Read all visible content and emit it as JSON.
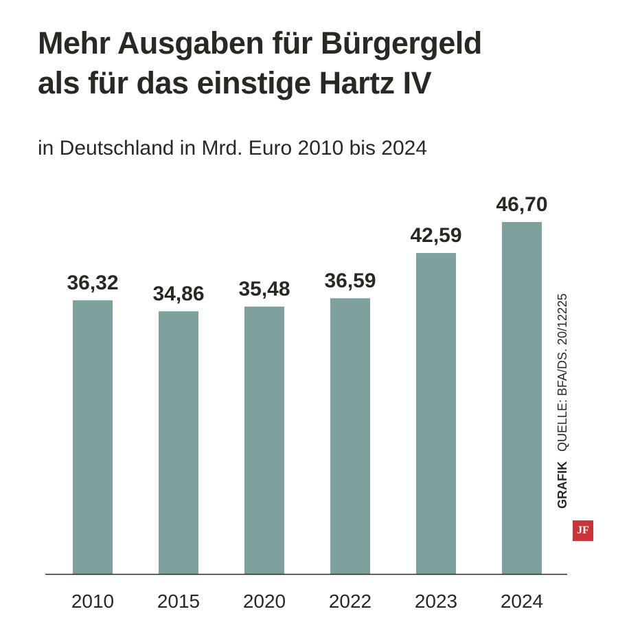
{
  "header": {
    "title_line1": "Mehr Ausgaben für Bürgergeld",
    "title_line2": "als für das einstige Hartz IV",
    "subtitle": "in Deutschland in Mrd. Euro 2010 bis 2024"
  },
  "side_note": {
    "grafik": "GRAFIK",
    "source": "QUELLE: BFA/DS. 20/12225",
    "logo": "JF"
  },
  "colors": {
    "bar": "#7fa19d",
    "text": "#2b2722",
    "logo": "#c8343a"
  },
  "chart_data": {
    "type": "bar",
    "categories": [
      "2010",
      "2015",
      "2020",
      "2022",
      "2023",
      "2024"
    ],
    "values": [
      36.32,
      34.86,
      35.48,
      36.59,
      42.59,
      46.7
    ],
    "value_labels": [
      "36,32",
      "34,86",
      "35,48",
      "36,59",
      "42,59",
      "46,70"
    ],
    "title": "Mehr Ausgaben für Bürgergeld als für das einstige Hartz IV",
    "subtitle": "in Deutschland in Mrd. Euro 2010 bis 2024",
    "xlabel": "",
    "ylabel": "",
    "ylim": [
      0,
      46.7
    ],
    "grid": false,
    "legend": "none"
  }
}
